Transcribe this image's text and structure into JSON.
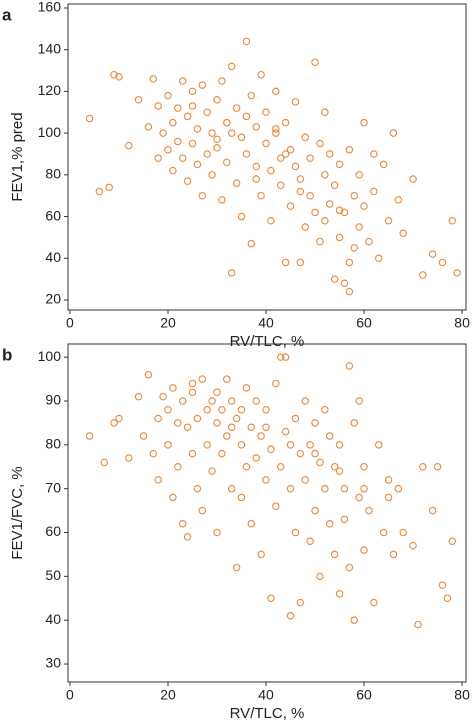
{
  "chart_data": [
    {
      "type": "scatter",
      "panel_label": "a",
      "xlabel": "RV/TLC, %",
      "ylabel": "FEV1,% pred",
      "xlim": [
        -0.4,
        80.8
      ],
      "ylim": [
        15.2,
        161.9
      ],
      "xticks": [
        0,
        20,
        40,
        60,
        80
      ],
      "yticks": [
        20,
        40,
        60,
        80,
        100,
        120,
        140,
        160
      ],
      "series": [
        {
          "color": "#e8883a",
          "x": [
            4,
            6,
            8,
            9,
            10,
            12,
            14,
            16,
            17,
            18,
            18,
            19,
            20,
            20,
            21,
            21,
            22,
            22,
            23,
            23,
            24,
            24,
            25,
            25,
            26,
            26,
            27,
            27,
            28,
            28,
            29,
            29,
            30,
            30,
            31,
            31,
            32,
            32,
            33,
            33,
            34,
            34,
            35,
            35,
            36,
            36,
            37,
            37,
            38,
            38,
            39,
            39,
            40,
            40,
            41,
            41,
            42,
            42,
            43,
            43,
            44,
            44,
            45,
            45,
            46,
            46,
            47,
            47,
            48,
            48,
            49,
            49,
            50,
            50,
            51,
            51,
            52,
            52,
            53,
            53,
            54,
            54,
            55,
            55,
            56,
            56,
            57,
            57,
            58,
            58,
            59,
            59,
            60,
            60,
            61,
            62,
            63,
            64,
            65,
            66,
            67,
            68,
            70,
            72,
            74,
            76,
            78,
            79,
            33,
            36,
            30,
            44,
            47,
            52,
            57,
            62,
            25,
            38,
            42,
            55
          ],
          "values": [
            107,
            72,
            74,
            128,
            127,
            94,
            116,
            103,
            126,
            88,
            113,
            100,
            118,
            92,
            105,
            82,
            112,
            96,
            125,
            88,
            108,
            77,
            120,
            95,
            102,
            85,
            123,
            70,
            110,
            90,
            100,
            80,
            116,
            93,
            125,
            68,
            105,
            86,
            132,
            33,
            112,
            76,
            98,
            60,
            144,
            90,
            118,
            47,
            103,
            84,
            128,
            70,
            95,
            110,
            82,
            58,
            120,
            100,
            75,
            88,
            105,
            38,
            92,
            65,
            115,
            84,
            78,
            38,
            98,
            55,
            88,
            70,
            134,
            62,
            95,
            48,
            80,
            110,
            66,
            90,
            75,
            30,
            85,
            50,
            62,
            28,
            24,
            92,
            70,
            45,
            80,
            55,
            65,
            105,
            48,
            72,
            40,
            85,
            58,
            100,
            68,
            52,
            78,
            32,
            42,
            38,
            58,
            33,
            100,
            108,
            97,
            90,
            72,
            58,
            38,
            90,
            113,
            78,
            102,
            63
          ]
        }
      ]
    },
    {
      "type": "scatter",
      "panel_label": "b",
      "xlabel": "RV/TLC, %",
      "ylabel": "FEV1/FVC, %",
      "xlim": [
        -0.4,
        80.8
      ],
      "ylim": [
        25.9,
        103
      ],
      "xticks": [
        0,
        20,
        40,
        60,
        80
      ],
      "yticks": [
        30,
        40,
        50,
        60,
        70,
        80,
        90,
        100
      ],
      "series": [
        {
          "color": "#e8883a",
          "x": [
            4,
            7,
            9,
            10,
            12,
            14,
            15,
            16,
            17,
            18,
            18,
            19,
            20,
            20,
            21,
            21,
            22,
            22,
            23,
            23,
            24,
            24,
            25,
            25,
            26,
            26,
            27,
            27,
            28,
            28,
            29,
            29,
            30,
            30,
            31,
            31,
            32,
            32,
            33,
            33,
            34,
            34,
            35,
            35,
            36,
            36,
            37,
            37,
            38,
            38,
            39,
            39,
            40,
            40,
            41,
            41,
            42,
            42,
            43,
            43,
            44,
            44,
            45,
            45,
            46,
            46,
            47,
            47,
            48,
            48,
            49,
            49,
            50,
            50,
            51,
            51,
            52,
            52,
            53,
            53,
            54,
            54,
            55,
            55,
            56,
            56,
            57,
            57,
            58,
            58,
            59,
            59,
            60,
            60,
            61,
            62,
            63,
            64,
            65,
            66,
            67,
            68,
            70,
            71,
            72,
            74,
            75,
            76,
            77,
            78,
            30,
            35,
            40,
            45,
            50,
            55,
            60,
            65,
            25,
            33
          ],
          "values": [
            82,
            76,
            85,
            86,
            77,
            91,
            82,
            96,
            78,
            86,
            72,
            91,
            88,
            80,
            93,
            68,
            85,
            75,
            90,
            62,
            84,
            59,
            92,
            78,
            86,
            70,
            95,
            65,
            88,
            80,
            90,
            74,
            85,
            60,
            88,
            78,
            95,
            82,
            70,
            84,
            52,
            86,
            80,
            68,
            93,
            75,
            84,
            62,
            90,
            77,
            55,
            82,
            72,
            88,
            45,
            79,
            94,
            66,
            100,
            75,
            100,
            83,
            70,
            41,
            86,
            60,
            78,
            44,
            90,
            72,
            80,
            58,
            85,
            65,
            76,
            50,
            88,
            70,
            62,
            82,
            75,
            55,
            80,
            46,
            70,
            63,
            98,
            52,
            85,
            40,
            90,
            68,
            75,
            56,
            65,
            44,
            80,
            60,
            72,
            55,
            70,
            60,
            57,
            39,
            75,
            65,
            75,
            48,
            45,
            58,
            92,
            88,
            84,
            80,
            78,
            74,
            70,
            68,
            94,
            90
          ]
        }
      ]
    }
  ]
}
